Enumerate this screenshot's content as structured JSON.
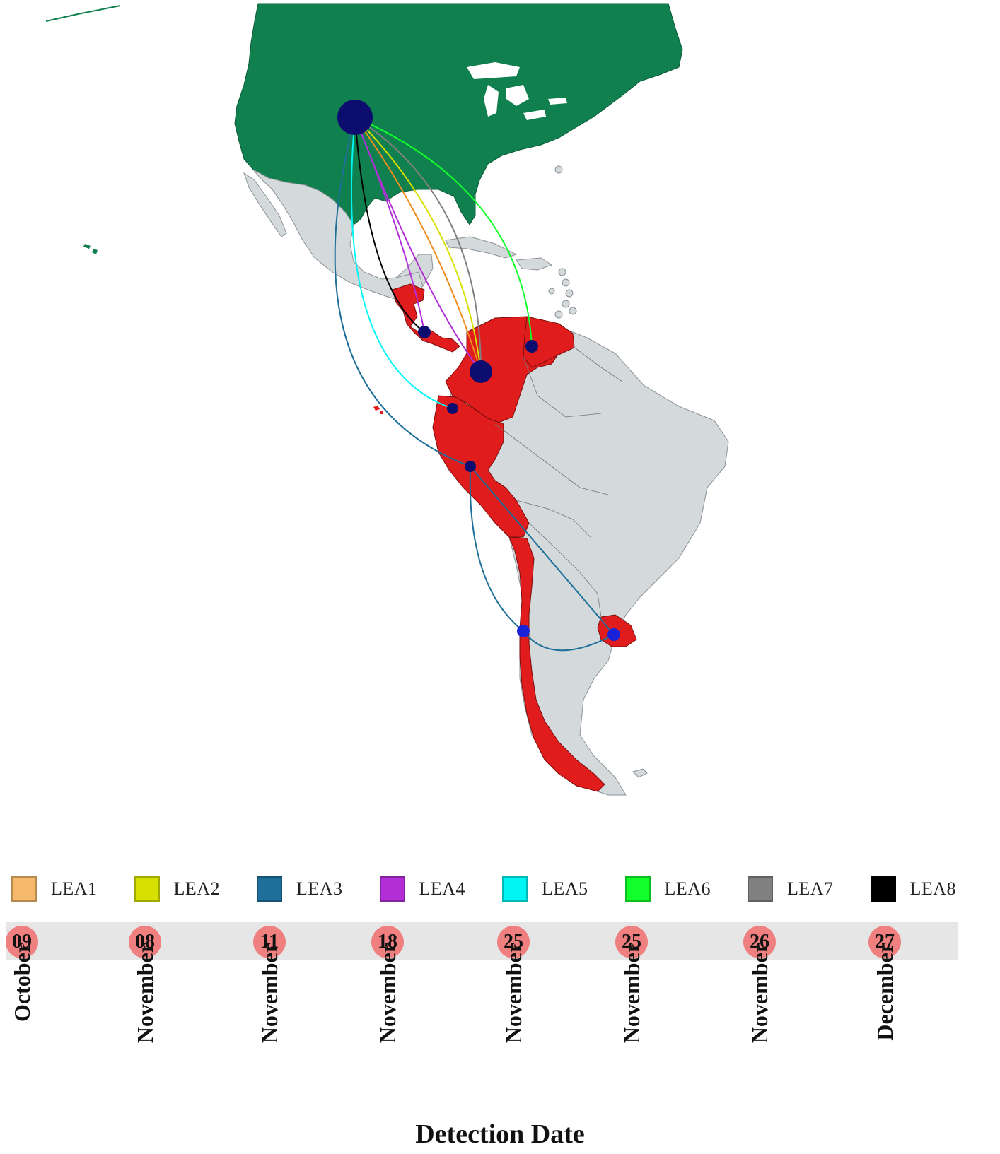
{
  "colors": {
    "background": "#ffffff",
    "usa_fill": "#11804f",
    "land_fill": "#d4dadc",
    "detected_fill": "#e01c1c",
    "node_fill": "#0d0d70",
    "node_fill_bright": "#1a22d8",
    "timeline_band": "#e6e6e6",
    "day_badge": "#f08080"
  },
  "legend": [
    {
      "label": "LEA1",
      "color": "#f5b96b"
    },
    {
      "label": "LEA2",
      "color": "#d7e000"
    },
    {
      "label": "LEA3",
      "color": "#1e6f99"
    },
    {
      "label": "LEA4",
      "color": "#b22ed6"
    },
    {
      "label": "LEA5",
      "color": "#00f5f5"
    },
    {
      "label": "LEA6",
      "color": "#11ff2a"
    },
    {
      "label": "LEA7",
      "color": "#808080"
    },
    {
      "label": "LEA8",
      "color": "#000000"
    }
  ],
  "timeline": [
    {
      "day": "09",
      "month": "October"
    },
    {
      "day": "08",
      "month": "November"
    },
    {
      "day": "11",
      "month": "November"
    },
    {
      "day": "18",
      "month": "November"
    },
    {
      "day": "25",
      "month": "November"
    },
    {
      "day": "25",
      "month": "November"
    },
    {
      "day": "26",
      "month": "November"
    },
    {
      "day": "27",
      "month": "December"
    }
  ],
  "axis_title": "Detection Date"
}
